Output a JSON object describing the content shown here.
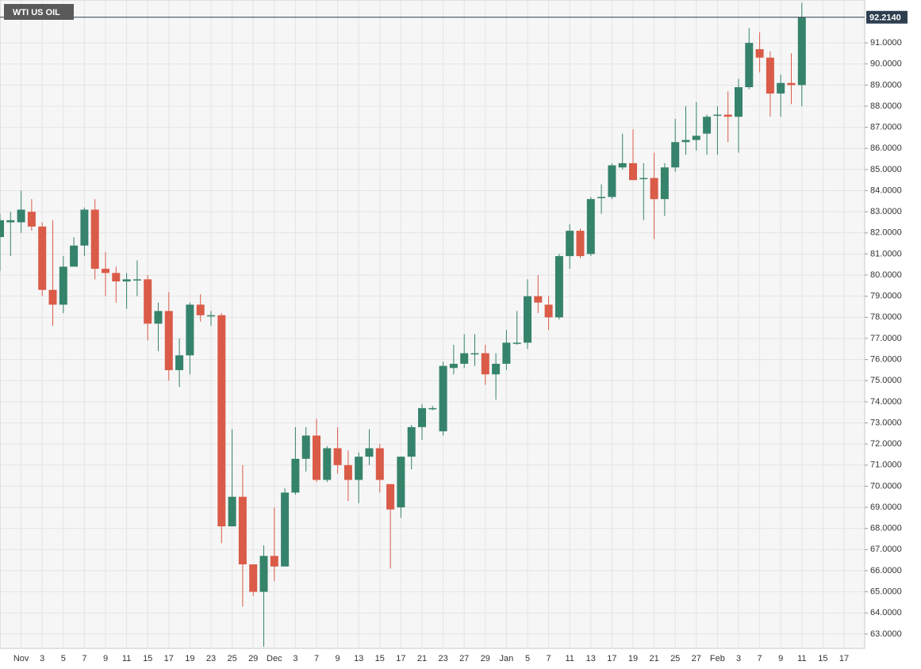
{
  "chart_data": {
    "type": "candlestick",
    "title": "WTI US OIL",
    "x": [
      null,
      null,
      "Nov",
      null,
      "3",
      null,
      "5",
      null,
      "7",
      null,
      "9",
      null,
      "11",
      null,
      "15",
      null,
      "17",
      null,
      "19",
      null,
      "23",
      null,
      "25",
      null,
      "29",
      null,
      "Dec",
      null,
      "3",
      null,
      "7",
      null,
      "9",
      null,
      "13",
      null,
      "15",
      null,
      "17",
      null,
      "21",
      null,
      "23",
      null,
      "27",
      null,
      "29",
      null,
      "Jan",
      null,
      "5",
      null,
      "7",
      null,
      "11",
      null,
      "13",
      null,
      "17",
      null,
      "19",
      null,
      "21",
      null,
      "25",
      null,
      "27",
      null,
      "Feb",
      null,
      "3",
      null,
      "7",
      null,
      "9",
      null,
      "11",
      null,
      "15",
      null,
      "17"
    ],
    "open": [
      81.8,
      82.5,
      82.5,
      83.0,
      82.3,
      79.3,
      78.6,
      80.4,
      81.4,
      83.1,
      80.3,
      80.1,
      79.7,
      79.8,
      79.8,
      77.7,
      78.3,
      75.5,
      76.2,
      78.6,
      78.1,
      78.1,
      68.1,
      69.5,
      66.3,
      65.0,
      66.7,
      66.2,
      69.7,
      71.3,
      72.4,
      70.3,
      71.8,
      71.0,
      70.3,
      71.4,
      71.8,
      70.1,
      69.0,
      71.4,
      72.8,
      73.7,
      72.6,
      75.6,
      75.8,
      76.3,
      76.3,
      75.3,
      75.8,
      76.8,
      76.8,
      79.0,
      78.6,
      78.0,
      80.9,
      82.1,
      81.0,
      83.7,
      83.7,
      85.1,
      85.3,
      84.6,
      84.6,
      83.6,
      85.1,
      86.3,
      86.4,
      86.7,
      87.6,
      87.6,
      87.5,
      88.9,
      90.7,
      90.3,
      88.6,
      89.1,
      89.0,
      null,
      null,
      null,
      null
    ],
    "high": [
      82.9,
      83.0,
      84.0,
      83.6,
      82.5,
      82.6,
      80.9,
      81.8,
      83.2,
      83.6,
      81.1,
      80.4,
      80.1,
      80.7,
      80.0,
      78.7,
      79.2,
      77.0,
      78.7,
      79.1,
      78.3,
      78.2,
      72.7,
      71.0,
      66.3,
      67.2,
      69.0,
      69.9,
      72.8,
      72.8,
      73.2,
      71.9,
      72.8,
      71.7,
      71.6,
      72.7,
      72.0,
      70.1,
      71.4,
      72.9,
      73.9,
      73.8,
      75.9,
      76.7,
      77.2,
      77.2,
      76.7,
      76.3,
      77.4,
      78.3,
      79.8,
      80.0,
      79.0,
      81.0,
      82.4,
      82.2,
      83.7,
      84.3,
      85.3,
      86.7,
      86.9,
      85.3,
      85.8,
      85.3,
      87.4,
      88.0,
      88.2,
      87.6,
      88.0,
      88.7,
      89.3,
      91.7,
      91.5,
      90.6,
      89.5,
      90.5,
      92.9,
      null,
      null,
      null,
      null
    ],
    "low": [
      80.2,
      80.9,
      82.0,
      82.1,
      79.0,
      77.6,
      78.2,
      80.4,
      80.9,
      79.8,
      79.0,
      78.7,
      78.4,
      79.0,
      76.9,
      76.4,
      75.0,
      74.7,
      75.3,
      77.8,
      77.6,
      67.3,
      68.1,
      64.3,
      64.8,
      62.4,
      65.5,
      66.2,
      69.6,
      70.7,
      70.2,
      70.2,
      70.6,
      69.3,
      69.2,
      71.0,
      69.7,
      66.1,
      68.5,
      70.8,
      72.2,
      73.6,
      72.4,
      75.3,
      75.6,
      75.7,
      74.8,
      74.1,
      75.5,
      76.7,
      76.5,
      78.2,
      77.4,
      77.9,
      80.3,
      80.8,
      80.9,
      82.9,
      83.6,
      85.0,
      84.5,
      82.6,
      81.7,
      82.8,
      84.9,
      85.7,
      85.9,
      85.7,
      85.7,
      86.3,
      85.8,
      88.8,
      89.6,
      87.5,
      87.5,
      88.1,
      88.0,
      null,
      null,
      null,
      null
    ],
    "close": [
      82.6,
      82.6,
      83.1,
      82.3,
      79.3,
      78.6,
      80.4,
      81.4,
      83.1,
      80.3,
      80.1,
      79.7,
      79.8,
      79.8,
      77.7,
      78.3,
      75.5,
      76.2,
      78.6,
      78.1,
      78.1,
      68.1,
      69.5,
      66.3,
      65.0,
      66.7,
      66.2,
      69.7,
      71.3,
      72.4,
      70.3,
      71.8,
      71.0,
      70.3,
      71.4,
      71.8,
      70.3,
      68.9,
      71.4,
      72.8,
      73.7,
      73.7,
      75.7,
      75.8,
      76.3,
      76.3,
      75.3,
      75.8,
      76.8,
      76.8,
      79.0,
      78.7,
      78.0,
      80.9,
      82.1,
      80.9,
      83.6,
      83.7,
      85.2,
      85.3,
      84.5,
      84.6,
      83.6,
      85.1,
      86.3,
      86.4,
      86.6,
      87.5,
      87.6,
      87.5,
      88.9,
      91.0,
      90.3,
      88.6,
      89.1,
      89.0,
      92.214,
      null,
      null,
      null,
      null
    ],
    "up_color": "#36836c",
    "down_color": "#da5b48",
    "ylim": [
      62.32,
      93.03
    ],
    "yticks": [
      {
        "value": 63,
        "label": "63.0000"
      },
      {
        "value": 64,
        "label": "64.0000"
      },
      {
        "value": 65,
        "label": "65.0000"
      },
      {
        "value": 66,
        "label": "66.0000"
      },
      {
        "value": 67,
        "label": "67.0000"
      },
      {
        "value": 68,
        "label": "68.0000"
      },
      {
        "value": 69,
        "label": "69.0000"
      },
      {
        "value": 70,
        "label": "70.0000"
      },
      {
        "value": 71,
        "label": "71.0000"
      },
      {
        "value": 72,
        "label": "72.0000"
      },
      {
        "value": 73,
        "label": "73.0000"
      },
      {
        "value": 74,
        "label": "74.0000"
      },
      {
        "value": 75,
        "label": "75.0000"
      },
      {
        "value": 76,
        "label": "76.0000"
      },
      {
        "value": 77,
        "label": "77.0000"
      },
      {
        "value": 78,
        "label": "78.0000"
      },
      {
        "value": 79,
        "label": "79.0000"
      },
      {
        "value": 80,
        "label": "80.0000"
      },
      {
        "value": 81,
        "label": "81.0000"
      },
      {
        "value": 82,
        "label": "82.0000"
      },
      {
        "value": 83,
        "label": "83.0000"
      },
      {
        "value": 84,
        "label": "84.0000"
      },
      {
        "value": 85,
        "label": "85.0000"
      },
      {
        "value": 86,
        "label": "86.0000"
      },
      {
        "value": 87,
        "label": "87.0000"
      },
      {
        "value": 88,
        "label": "88.0000"
      },
      {
        "value": 89,
        "label": "89.0000"
      },
      {
        "value": 90,
        "label": "90.0000"
      },
      {
        "value": 91,
        "label": "91.0000"
      }
    ],
    "grid": true,
    "last_price": {
      "value": 92.214,
      "label": "92.2140"
    }
  }
}
